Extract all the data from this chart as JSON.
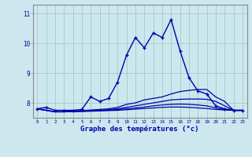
{
  "title": "Graphe des températures (°c)",
  "background_color": "#cce8ee",
  "grid_color": "#aacccc",
  "line_color": "#0000aa",
  "xlim": [
    -0.5,
    23.5
  ],
  "ylim": [
    7.5,
    11.3
  ],
  "yticks": [
    8,
    9,
    10,
    11
  ],
  "ytick_labels": [
    "8",
    "9",
    "10",
    "11"
  ],
  "xtick_labels": [
    "0",
    "1",
    "2",
    "3",
    "4",
    "5",
    "6",
    "7",
    "8",
    "9",
    "10",
    "11",
    "12",
    "13",
    "14",
    "15",
    "16",
    "17",
    "18",
    "19",
    "20",
    "21",
    "22",
    "23"
  ],
  "series": [
    {
      "x": [
        0,
        1,
        2,
        3,
        4,
        5,
        6,
        7,
        8,
        9,
        10,
        11,
        12,
        13,
        14,
        15,
        16,
        17,
        18,
        19,
        20,
        21,
        22,
        23
      ],
      "y": [
        7.8,
        7.85,
        7.75,
        7.75,
        7.75,
        7.78,
        8.2,
        8.05,
        8.15,
        8.7,
        9.6,
        10.2,
        9.85,
        10.35,
        10.2,
        10.8,
        9.75,
        8.85,
        8.4,
        8.3,
        7.9,
        7.8,
        7.75,
        7.75
      ],
      "marker": true
    },
    {
      "x": [
        0,
        1,
        2,
        3,
        4,
        5,
        6,
        7,
        8,
        9,
        10,
        11,
        12,
        13,
        14,
        15,
        16,
        17,
        18,
        19,
        20,
        21,
        22,
        23
      ],
      "y": [
        7.8,
        7.75,
        7.7,
        7.7,
        7.72,
        7.74,
        7.76,
        7.78,
        7.8,
        7.85,
        7.95,
        8.0,
        8.1,
        8.15,
        8.2,
        8.3,
        8.38,
        8.42,
        8.45,
        8.45,
        8.2,
        8.05,
        7.75,
        7.75
      ],
      "marker": false
    },
    {
      "x": [
        0,
        1,
        2,
        3,
        4,
        5,
        6,
        7,
        8,
        9,
        10,
        11,
        12,
        13,
        14,
        15,
        16,
        17,
        18,
        19,
        20,
        21,
        22,
        23
      ],
      "y": [
        7.8,
        7.75,
        7.7,
        7.7,
        7.72,
        7.73,
        7.74,
        7.75,
        7.77,
        7.8,
        7.85,
        7.9,
        7.95,
        8.0,
        8.05,
        8.1,
        8.12,
        8.13,
        8.13,
        8.12,
        8.05,
        7.9,
        7.75,
        7.75
      ],
      "marker": false
    },
    {
      "x": [
        0,
        1,
        2,
        3,
        4,
        5,
        6,
        7,
        8,
        9,
        10,
        11,
        12,
        13,
        14,
        15,
        16,
        17,
        18,
        19,
        20,
        21,
        22,
        23
      ],
      "y": [
        7.8,
        7.75,
        7.7,
        7.7,
        7.71,
        7.72,
        7.73,
        7.74,
        7.76,
        7.78,
        7.8,
        7.83,
        7.86,
        7.9,
        7.93,
        7.95,
        7.96,
        7.95,
        7.93,
        7.9,
        7.83,
        7.78,
        7.75,
        7.75
      ],
      "marker": false
    },
    {
      "x": [
        0,
        1,
        2,
        3,
        4,
        5,
        6,
        7,
        8,
        9,
        10,
        11,
        12,
        13,
        14,
        15,
        16,
        17,
        18,
        19,
        20,
        21,
        22,
        23
      ],
      "y": [
        7.8,
        7.75,
        7.7,
        7.7,
        7.71,
        7.71,
        7.72,
        7.73,
        7.74,
        7.75,
        7.77,
        7.79,
        7.81,
        7.83,
        7.85,
        7.86,
        7.86,
        7.85,
        7.83,
        7.81,
        7.78,
        7.76,
        7.75,
        7.75
      ],
      "marker": false
    }
  ]
}
